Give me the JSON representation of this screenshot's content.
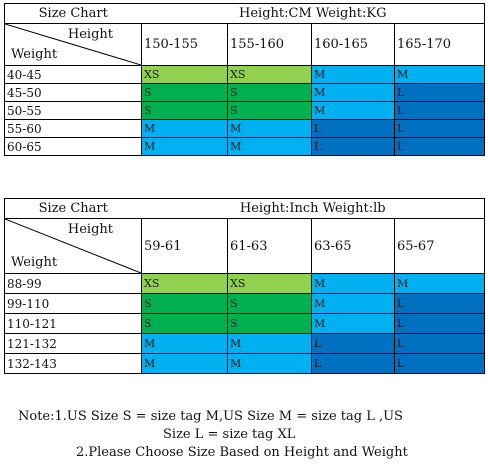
{
  "colors": {
    "XS": "#92d050",
    "S": "#00b050",
    "M": "#00b0f0",
    "L": "#0070c0"
  },
  "charts": [
    {
      "title_left": "Size Chart",
      "title_right": "Height:CM Weight:KG",
      "corner_height": "Height",
      "corner_weight": "Weight",
      "columns": [
        "150-155",
        "155-160",
        "160-165",
        "165-170"
      ],
      "rows": [
        {
          "label": "40-45",
          "sizes": [
            "XS",
            "XS",
            "M",
            "M"
          ]
        },
        {
          "label": "45-50",
          "sizes": [
            "S",
            "S",
            "M",
            "L"
          ]
        },
        {
          "label": "50-55",
          "sizes": [
            "S",
            "S",
            "M",
            "L"
          ]
        },
        {
          "label": "55-60",
          "sizes": [
            "M",
            "M",
            "L",
            "L"
          ]
        },
        {
          "label": "60-65",
          "sizes": [
            "M",
            "M",
            "L",
            "L"
          ]
        }
      ]
    },
    {
      "title_left": "Size Chart",
      "title_right": "Height:Inch Weight:lb",
      "corner_height": "Height",
      "corner_weight": "Weight",
      "columns": [
        "59-61",
        "61-63",
        "63-65",
        "65-67"
      ],
      "rows": [
        {
          "label": "88-99",
          "sizes": [
            "XS",
            "XS",
            "M",
            "M"
          ]
        },
        {
          "label": "99-110",
          "sizes": [
            "S",
            "S",
            "M",
            "L"
          ]
        },
        {
          "label": "110-121",
          "sizes": [
            "S",
            "S",
            "M",
            "L"
          ]
        },
        {
          "label": "121-132",
          "sizes": [
            "M",
            "M",
            "L",
            "L"
          ]
        },
        {
          "label": "132-143",
          "sizes": [
            "M",
            "M",
            "L",
            "L"
          ]
        }
      ]
    }
  ],
  "notes": {
    "line1": "Note:1.US Size S = size tag M,US Size M = size tag L ,US",
    "line2": "Size L = size tag XL",
    "line3": "2.Please Choose Size Based on Height and Weight"
  }
}
